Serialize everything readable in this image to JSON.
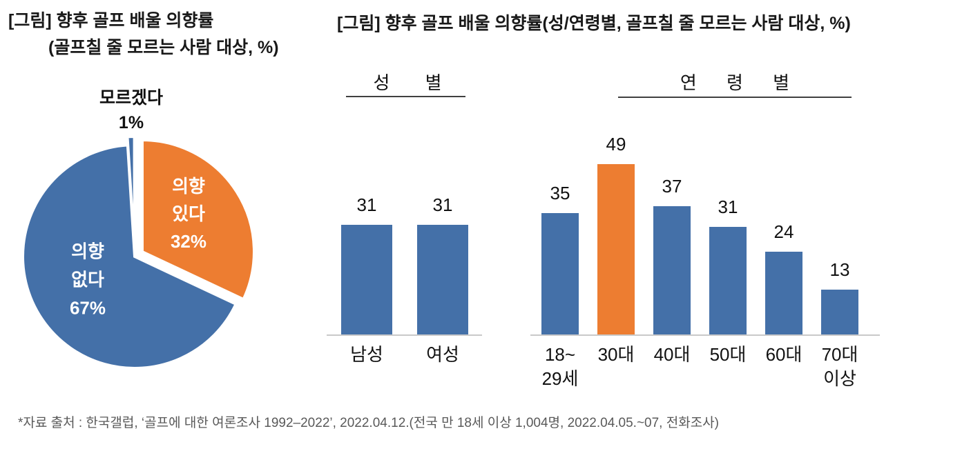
{
  "left_chart": {
    "title_line1": "[그림] 향후 골프 배울 의향률",
    "title_line2": "(골프칠 줄 모르는 사람 대상, %)"
  },
  "right_chart": {
    "title": "[그림] 향후 골프 배울 의향률(성/연령별, 골프칠 줄 모르는 사람 대상, %)",
    "gender_header": "성 별",
    "age_header": "연 령 별"
  },
  "footnote": "*자료 출처 : 한국갤럽, ‘골프에 대한 여론조사 1992–2022’, 2022.04.12.(전국 만 18세 이상 1,004명, 2022.04.05.~07, 전화조사)",
  "colors": {
    "blue": "#4470A8",
    "orange": "#ED7D31",
    "axis_line": "#c9c9c9",
    "header_underline": "#3f3f3f",
    "text": "#191919",
    "footnote_text": "#595959",
    "pie_gap_stroke": "#ffffff"
  },
  "chart_data": [
    {
      "type": "pie",
      "title": "향후 골프 배울 의향률 (골프칠 줄 모르는 사람 대상, %)",
      "start_angle_deg_from_top": 0,
      "direction": "clockwise",
      "slices": [
        {
          "label": "의향 있다",
          "value": 32,
          "color": "#ED7D31",
          "exploded": true,
          "display": "의향\n있다\n32%",
          "label_position": "inside"
        },
        {
          "label": "의향 없다",
          "value": 67,
          "color": "#4470A8",
          "exploded": false,
          "display": "의향\n없다\n67%",
          "label_position": "inside"
        },
        {
          "label": "모르겠다",
          "value": 1,
          "color": "#4470A8",
          "exploded": true,
          "display": "모르겠다\n1%",
          "label_position": "outside"
        }
      ]
    },
    {
      "type": "bar",
      "group": "성별",
      "categories": [
        "남성",
        "여성"
      ],
      "values": [
        31,
        31
      ],
      "colors": [
        "#4470A8",
        "#4470A8"
      ],
      "value_labels_shown": true,
      "value_axis_visible": false,
      "ylim": [
        0,
        55
      ]
    },
    {
      "type": "bar",
      "group": "연령별",
      "categories": [
        "18~\n29세",
        "30대",
        "40대",
        "50대",
        "60대",
        "70대\n이상"
      ],
      "values": [
        35,
        49,
        37,
        31,
        24,
        13
      ],
      "colors": [
        "#4470A8",
        "#ED7D31",
        "#4470A8",
        "#4470A8",
        "#4470A8",
        "#4470A8"
      ],
      "highlighted_category": "30대",
      "value_labels_shown": true,
      "value_axis_visible": false,
      "ylim": [
        0,
        55
      ]
    }
  ]
}
